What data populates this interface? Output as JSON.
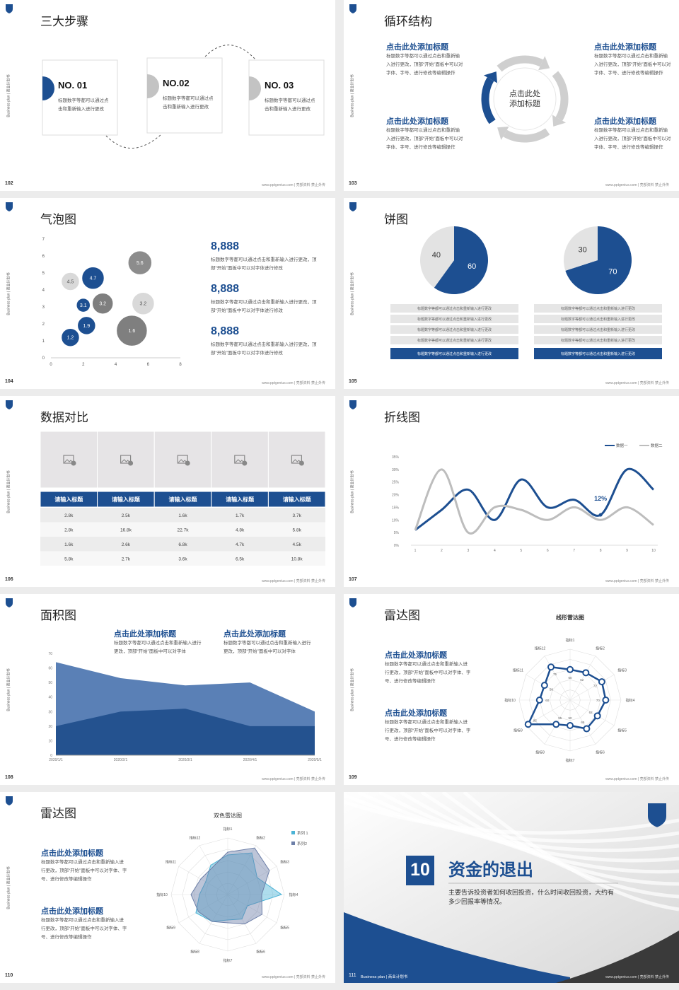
{
  "side_label": "Business plan | 商业计划书",
  "footer": "www.pptgenius.com | 亮部资料 禁止外传",
  "slides": [
    {
      "page": 102,
      "title": "三大步骤",
      "steps": [
        {
          "label": "NO. 01",
          "text": "标题数字等都可以通过点击和重新输入进行更改"
        },
        {
          "label": "NO.02",
          "text": "标题数字等都可以通过点击和重新输入进行更改"
        },
        {
          "label": "NO. 03",
          "text": "标题数字等都可以通过点击和重新输入进行更改"
        }
      ]
    },
    {
      "page": 103,
      "title": "循环结构",
      "cycle": {
        "center": "点击此处添加标题",
        "blocks": [
          {
            "heading": "点击此处添加标题",
            "text": "标题数字等都可以通过点击和重新输入进行更改，顶部“开始”面板中可以对字体、字号、进行修改等编辑操作"
          },
          {
            "heading": "点击此处添加标题",
            "text": "标题数字等都可以通过点击和重新输入进行更改，顶部“开始”面板中可以对字体、字号、进行修改等编辑操作"
          },
          {
            "heading": "点击此处添加标题",
            "text": "标题数字等都可以通过点击和重新输入进行更改，顶部“开始”面板中可以对字体、字号、进行修改等编辑操作"
          },
          {
            "heading": "点击此处添加标题",
            "text": "标题数字等都可以通过点击和重新输入进行更改，顶部“开始”面板中可以对字体、字号、进行修改等编辑操作"
          }
        ]
      }
    },
    {
      "page": 104,
      "title": "气泡图",
      "chart": {
        "type": "bubble",
        "x": [
          1.2,
          2.2,
          2.0,
          3.2,
          1.2,
          2.6,
          5.5,
          5.7,
          5.0
        ],
        "values": [
          1.2,
          1.9,
          3.1,
          3.2,
          4.5,
          4.7,
          5.6,
          3.2,
          1.6
        ],
        "sizes": [
          13,
          13,
          10,
          15,
          13,
          16,
          17,
          16,
          22
        ],
        "colors": [
          "#1d4f91",
          "#1d4f91",
          "#1d4f91",
          "#7f7f7f",
          "#d9d9d9",
          "#1d4f91",
          "#8c8c8c",
          "#d9d9d9",
          "#7f7f7f"
        ],
        "xlim": [
          0,
          8
        ],
        "xticks": [
          0,
          2,
          4,
          6,
          8
        ],
        "ylim": [
          0,
          7
        ],
        "yticks": [
          0,
          1,
          2,
          3,
          4,
          5,
          6,
          7
        ]
      },
      "stats": [
        {
          "value": "8,888",
          "text": "标题数字等都可以通过点击和重新输入进行更改，顶部“开始”面板中可以对字体进行修改"
        },
        {
          "value": "8,888",
          "text": "标题数字等都可以通过点击和重新输入进行更改，顶部“开始”面板中可以对字体进行修改"
        },
        {
          "value": "8,888",
          "text": "标题数字等都可以通过点击和重新输入进行更改，顶部“开始”面板中可以对字体进行修改"
        }
      ]
    },
    {
      "page": 105,
      "title": "饼图",
      "chart": {
        "type": "pie",
        "pies": [
          {
            "values": [
              60,
              40
            ],
            "colors": [
              "#1d4f91",
              "#e3e3e3"
            ]
          },
          {
            "values": [
              70,
              30
            ],
            "colors": [
              "#1d4f91",
              "#e3e3e3"
            ]
          }
        ]
      },
      "rows": [
        [
          "标题数字等都可以通过点击和重新输入进行更改",
          "标题数字等都可以通过点击和重新输入进行更改",
          "标题数字等都可以通过点击和重新输入进行更改",
          "标题数字等都可以通过点击和重新输入进行更改",
          "标题数字等都可以通过点击和重新输入进行更改"
        ],
        [
          "标题数字等都可以通过点击和重新输入进行更改",
          "标题数字等都可以通过点击和重新输入进行更改",
          "标题数字等都可以通过点击和重新输入进行更改",
          "标题数字等都可以通过点击和重新输入进行更改",
          "标题数字等都可以通过点击和重新输入进行更改"
        ]
      ]
    },
    {
      "page": 106,
      "title": "数据对比",
      "table": {
        "headers": [
          "请输入标题",
          "请输入标题",
          "请输入标题",
          "请输入标题",
          "请输入标题"
        ],
        "rows": [
          [
            "2.8k",
            "2.5k",
            "1.6k",
            "1.7k",
            "3.7k"
          ],
          [
            "2.8k",
            "16.8k",
            "22.7k",
            "4.8k",
            "5.8k"
          ],
          [
            "1.6k",
            "2.6k",
            "6.8k",
            "4.7k",
            "4.5k"
          ],
          [
            "5.8k",
            "2.7k",
            "3.6k",
            "6.5k",
            "10.8k"
          ]
        ]
      }
    },
    {
      "page": 107,
      "title": "折线图",
      "chart": {
        "type": "line",
        "x": [
          1,
          2,
          3,
          4,
          5,
          6,
          7,
          8,
          9,
          10
        ],
        "xlim": [
          1,
          10
        ],
        "xticks": [
          1,
          2,
          3,
          4,
          5,
          6,
          7,
          8,
          9,
          10
        ],
        "ylim": [
          0,
          35
        ],
        "yticks": [
          {
            "value": 0,
            "label": "0%"
          },
          {
            "value": 5,
            "label": "5%"
          },
          {
            "value": 10,
            "label": "10%"
          },
          {
            "value": 15,
            "label": "15%"
          },
          {
            "value": 20,
            "label": "20%"
          },
          {
            "value": 25,
            "label": "25%"
          },
          {
            "value": 30,
            "label": "30%"
          },
          {
            "value": 35,
            "label": "35%"
          }
        ],
        "series": [
          {
            "name": "数据一",
            "color": "#1d4f91",
            "values": [
              6,
              14,
              22,
              10,
              26,
              15,
              18,
              12,
              30,
              22
            ],
            "value_labels": [
              null,
              null,
              null,
              null,
              null,
              null,
              null,
              "12%",
              null,
              null
            ]
          },
          {
            "name": "数据二",
            "color": "#bdbdbd",
            "values": [
              6,
              30,
              5,
              15,
              14,
              10,
              15,
              10,
              15,
              8
            ]
          }
        ]
      }
    },
    {
      "page": 108,
      "title": "面积图",
      "blocks": [
        {
          "heading": "点击此处添加标题",
          "text": "标题数字等都可以通过点击和重新输入进行更改，顶部“开始”面板中可以对字体"
        },
        {
          "heading": "点击此处添加标题",
          "text": "标题数字等都可以通过点击和重新输入进行更改，顶部“开始”面板中可以对字体"
        }
      ],
      "chart": {
        "type": "area",
        "categories": [
          "2020/1/1",
          "2020/2/1",
          "2020/3/1",
          "2020/4/1",
          "2020/5/1"
        ],
        "ylim": [
          0,
          70
        ],
        "yticks": [
          0,
          10,
          20,
          30,
          40,
          50,
          60,
          70
        ],
        "series": [
          {
            "color": "#5a80b6",
            "values": [
              64,
              53,
              48,
              50,
              30
            ]
          },
          {
            "color": "#24528f",
            "values": [
              20,
              30,
              32,
              20,
              20
            ]
          }
        ]
      }
    },
    {
      "page": 109,
      "title": "雷达图",
      "blocks": [
        {
          "heading": "点击此处添加标题",
          "text": "标题数字等都可以通过点击和重新输入进行更改，顶部“开始”面板中可以对字体、字号、进行修改等编辑操作"
        },
        {
          "heading": "点击此处添加标题",
          "text": "标题数字等都可以通过点击和重新输入进行更改，顶部“开始”面板中可以对字体、字号、进行修改等编辑操作"
        }
      ],
      "chart": {
        "type": "radar",
        "title": "线形雷达图",
        "categories": [
          "指标1",
          "指标2",
          "指标3",
          "指标4",
          "指标5",
          "指标6",
          "指标7",
          "指标8",
          "指标9",
          "指标10",
          "指标11",
          "指标12"
        ],
        "ylim": [
          0,
          100
        ],
        "series": [
          {
            "color": "#1d4f91",
            "values": [
              60,
              62,
              72,
              70,
              62,
              65,
              50,
              55,
              95,
              60,
              58,
              75
            ]
          }
        ]
      }
    },
    {
      "page": 110,
      "title": "雷达图",
      "blocks": [
        {
          "heading": "点击此处添加标题",
          "text": "标题数字等都可以通过点击和重新输入进行更改，顶部“开始”面板中可以对字体、字号、进行修改等编辑操作"
        },
        {
          "heading": "点击此处添加标题",
          "text": "标题数字等都可以通过点击和重新输入进行更改，顶部“开始”面板中可以对字体、字号、进行修改等编辑操作"
        }
      ],
      "chart": {
        "type": "radar",
        "title": "双色雷达图",
        "categories": [
          "指标1",
          "指标2",
          "指标3",
          "指标4",
          "指标5",
          "指标6",
          "指标7",
          "指标8",
          "指标9",
          "指标10",
          "指标11",
          "指标12"
        ],
        "ylim": [
          0,
          100
        ],
        "series": [
          {
            "name": "系列 1",
            "color": "#4bb3d6",
            "values": [
              70,
              85,
              60,
              95,
              40,
              50,
              45,
              55,
              65,
              50,
              45,
              60
            ]
          },
          {
            "name": "系列2",
            "color": "#6d7fa8",
            "values": [
              75,
              95,
              85,
              60,
              70,
              60,
              50,
              55,
              60,
              65,
              55,
              55
            ]
          }
        ]
      }
    },
    {
      "page": 111,
      "section": {
        "number": "10",
        "title": "资金的退出",
        "text": "主要告诉投资者如何收回投资，什么时间收回投资，大约有多少回报率等情况。"
      }
    }
  ]
}
